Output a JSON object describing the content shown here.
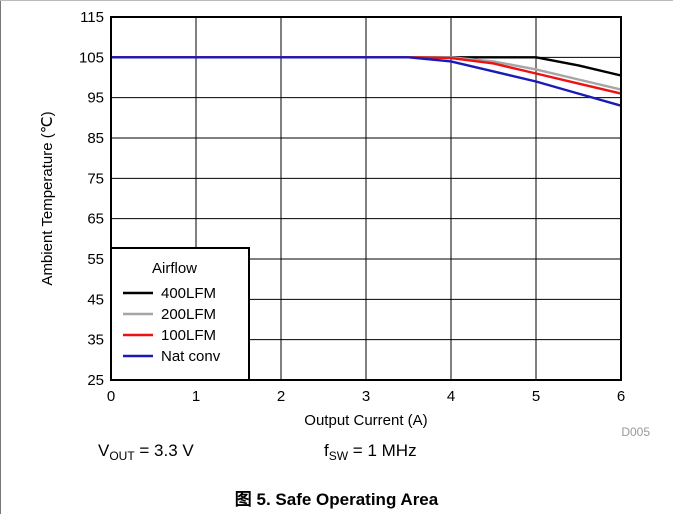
{
  "chart_data": {
    "type": "line",
    "xlabel": "Output Current (A)",
    "ylabel": "Ambient Temperature (℃)",
    "xlim": [
      0,
      6
    ],
    "ylim": [
      25,
      115
    ],
    "x_ticks": [
      "0",
      "1",
      "2",
      "3",
      "4",
      "5",
      "6"
    ],
    "y_ticks": [
      "25",
      "35",
      "45",
      "55",
      "65",
      "75",
      "85",
      "95",
      "105",
      "115"
    ],
    "grid": true,
    "legend": {
      "title": "Airflow",
      "placement": "bottom-left",
      "entries": [
        "400LFM",
        "200LFM",
        "100LFM",
        "Nat conv"
      ]
    },
    "series": [
      {
        "name": "400LFM",
        "color": "#000000",
        "points": [
          [
            0,
            105
          ],
          [
            3.5,
            105
          ],
          [
            4.5,
            105
          ],
          [
            5,
            105
          ],
          [
            5.5,
            103
          ],
          [
            6,
            100.5
          ]
        ]
      },
      {
        "name": "200LFM",
        "color": "#a6a6a6",
        "points": [
          [
            0,
            105
          ],
          [
            3.5,
            105
          ],
          [
            4,
            105
          ],
          [
            4.5,
            104
          ],
          [
            5,
            102
          ],
          [
            5.5,
            99.5
          ],
          [
            6,
            97
          ]
        ]
      },
      {
        "name": "100LFM",
        "color": "#ee1111",
        "points": [
          [
            0,
            105
          ],
          [
            3.5,
            105
          ],
          [
            4,
            104.8
          ],
          [
            4.5,
            103.5
          ],
          [
            5,
            101
          ],
          [
            5.5,
            98.5
          ],
          [
            6,
            96
          ]
        ]
      },
      {
        "name": "Nat conv",
        "color": "#1a1ab8",
        "points": [
          [
            0,
            105
          ],
          [
            3.5,
            105
          ],
          [
            4,
            104
          ],
          [
            4.5,
            101.5
          ],
          [
            5,
            99
          ],
          [
            5.5,
            96
          ],
          [
            6,
            93
          ]
        ]
      }
    ],
    "annotations": [
      "D005"
    ]
  },
  "conditions": {
    "vout_prefix": "V",
    "vout_sub": "OUT",
    "vout_value": " = 3.3 V",
    "fsw_prefix": "f",
    "fsw_sub": "SW",
    "fsw_value": " = 1 MHz"
  },
  "caption": "图 5. Safe Operating Area"
}
